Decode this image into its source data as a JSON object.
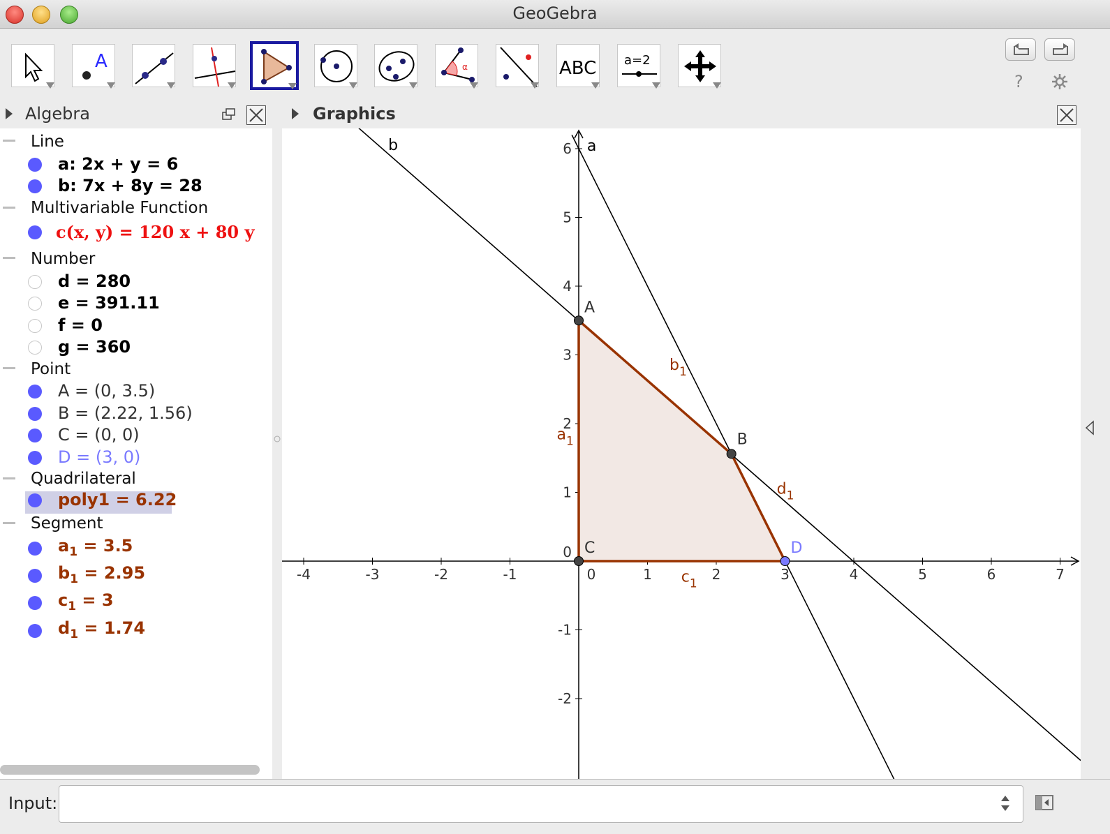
{
  "window": {
    "title": "GeoGebra"
  },
  "toolbar": {
    "tools": [
      {
        "name": "move-tool"
      },
      {
        "name": "point-tool"
      },
      {
        "name": "line-tool"
      },
      {
        "name": "perpendicular-line-tool"
      },
      {
        "name": "polygon-tool",
        "selected": true
      },
      {
        "name": "circle-tool"
      },
      {
        "name": "conic-tool"
      },
      {
        "name": "angle-tool"
      },
      {
        "name": "reflect-tool"
      },
      {
        "name": "text-tool",
        "label": "ABC"
      },
      {
        "name": "slider-tool",
        "label": "a=2"
      },
      {
        "name": "move-graphics-tool"
      }
    ],
    "help_label": "?"
  },
  "algebra": {
    "title": "Algebra",
    "categories": {
      "line": "Line",
      "multivariable": "Multivariable Function",
      "number": "Number",
      "point": "Point",
      "quadrilateral": "Quadrilateral",
      "segment": "Segment"
    },
    "lines": [
      "a: 2x + y = 6",
      "b: 7x + 8y = 28"
    ],
    "function": "c(x, y)  =  120 x + 80 y",
    "numbers": [
      "d = 280",
      "e = 391.11",
      "f = 0",
      "g = 360"
    ],
    "points": [
      "A = (0, 3.5)",
      "B = (2.22, 1.56)",
      "C = (0, 0)",
      "D = (3, 0)"
    ],
    "quadrilateral": "poly1 = 6.22",
    "segments": [
      {
        "name": "a",
        "sub": "1",
        "value": " = 3.5"
      },
      {
        "name": "b",
        "sub": "1",
        "value": " = 2.95"
      },
      {
        "name": "c",
        "sub": "1",
        "value": " = 3"
      },
      {
        "name": "d",
        "sub": "1",
        "value": " = 1.74"
      }
    ]
  },
  "graphics": {
    "title": "Graphics",
    "x_ticks": [
      "-4",
      "-3",
      "-2",
      "-1",
      "0",
      "1",
      "2",
      "3",
      "4",
      "5",
      "6",
      "7"
    ],
    "y_ticks": [
      "-2",
      "-1",
      "0",
      "1",
      "2",
      "3",
      "4",
      "5",
      "6"
    ],
    "line_labels": [
      "a",
      "b"
    ],
    "point_labels": [
      "A",
      "B",
      "C",
      "D"
    ],
    "segment_labels": [
      {
        "name": "a",
        "sub": "1"
      },
      {
        "name": "b",
        "sub": "1"
      },
      {
        "name": "c",
        "sub": "1"
      },
      {
        "name": "d",
        "sub": "1"
      }
    ],
    "points": [
      {
        "name": "A",
        "x": 0,
        "y": 3.5
      },
      {
        "name": "B",
        "x": 2.22,
        "y": 1.56
      },
      {
        "name": "C",
        "x": 0,
        "y": 0
      },
      {
        "name": "D",
        "x": 3,
        "y": 0
      }
    ],
    "colors": {
      "polygon_stroke": "#993300",
      "polygon_fill": "#f2e8e4",
      "point_fill": "#444444",
      "free_point": "#7a7aff"
    }
  },
  "input": {
    "label": "Input:",
    "value": ""
  }
}
